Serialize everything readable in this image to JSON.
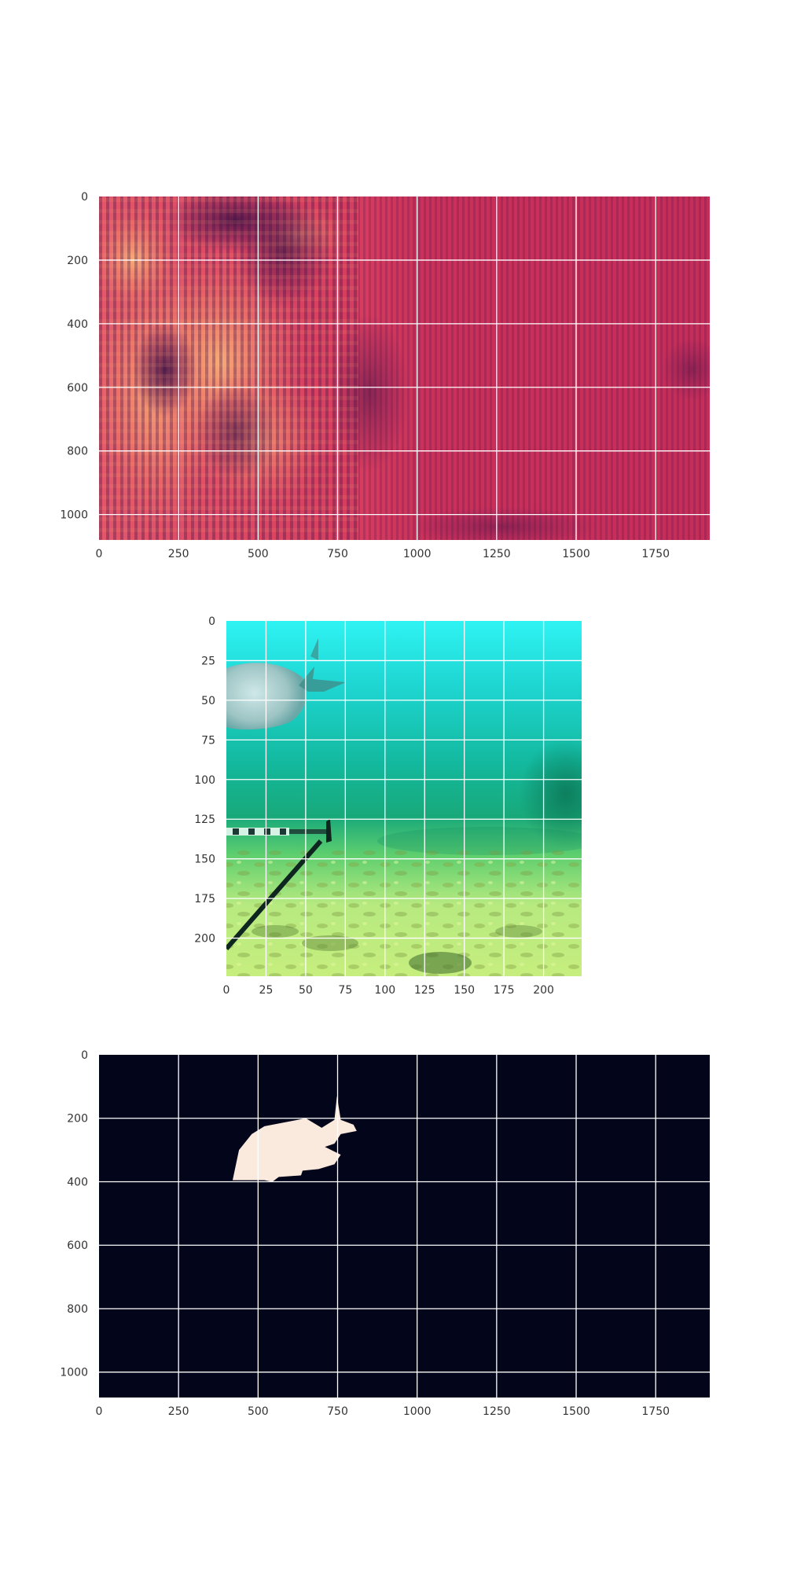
{
  "chart_data": [
    {
      "type": "heatmap",
      "title": "",
      "xlabel": "",
      "ylabel": "",
      "xlim": [
        0,
        1920
      ],
      "ylim": [
        1080,
        0
      ],
      "xticks": [
        0,
        250,
        500,
        750,
        1000,
        1250,
        1500,
        1750
      ],
      "yticks": [
        0,
        200,
        400,
        600,
        800,
        1000
      ],
      "grid": true,
      "colormap": "rocket",
      "colors": {
        "bright": "#f7a070",
        "mid": "#d9305a",
        "dark": "#4a1248"
      }
    },
    {
      "type": "image",
      "title": "",
      "xlabel": "",
      "ylabel": "",
      "xlim": [
        0,
        224
      ],
      "ylim": [
        224,
        0
      ],
      "xticks": [
        0,
        25,
        50,
        75,
        100,
        125,
        150,
        175,
        200
      ],
      "yticks": [
        0,
        25,
        50,
        75,
        100,
        125,
        150,
        175,
        200
      ],
      "grid": true,
      "content": "underwater scene with fish, measuring rod and sandy seabed",
      "colors": {
        "water_top": "#2ff0f0",
        "water_mid": "#14b89a",
        "seabed": "#c8ee80"
      }
    },
    {
      "type": "image",
      "title": "",
      "xlabel": "",
      "ylabel": "",
      "xlim": [
        0,
        1920
      ],
      "ylim": [
        1080,
        0
      ],
      "xticks": [
        0,
        250,
        500,
        750,
        1000,
        1250,
        1500,
        1750
      ],
      "yticks": [
        0,
        200,
        400,
        600,
        800,
        1000
      ],
      "grid": true,
      "content": "binary segmentation mask of fish",
      "mask_polygon": [
        [
          420,
          395
        ],
        [
          440,
          300
        ],
        [
          480,
          250
        ],
        [
          520,
          225
        ],
        [
          650,
          200
        ],
        [
          700,
          230
        ],
        [
          740,
          205
        ],
        [
          748,
          130
        ],
        [
          760,
          205
        ],
        [
          800,
          220
        ],
        [
          810,
          240
        ],
        [
          760,
          250
        ],
        [
          740,
          280
        ],
        [
          710,
          290
        ],
        [
          760,
          315
        ],
        [
          740,
          345
        ],
        [
          690,
          360
        ],
        [
          640,
          365
        ],
        [
          635,
          380
        ],
        [
          565,
          385
        ],
        [
          545,
          400
        ],
        [
          520,
          395
        ]
      ],
      "colors": {
        "background": "#03051a",
        "mask": "#faeade"
      }
    }
  ]
}
